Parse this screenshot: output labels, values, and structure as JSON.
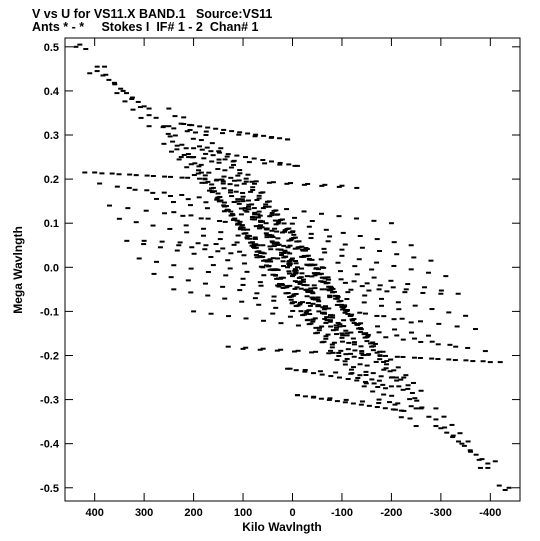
{
  "chart_data": {
    "type": "scatter",
    "title": "V vs U for VS11.X BAND.1   Source:VS11",
    "subtitle": "Ants * - *     Stokes I  IF# 1 - 2  Chan# 1",
    "xlabel": "Kilo Wavlngth",
    "ylabel": "Mega Wavlngth",
    "xlim": [
      460,
      -460
    ],
    "ylim": [
      -0.53,
      0.52
    ],
    "xticks": [
      400,
      300,
      200,
      100,
      0,
      -100,
      -200,
      -300,
      -400
    ],
    "xtick_labels": [
      "400",
      "300",
      "200",
      "100",
      "0",
      "-100",
      "-200",
      "-300",
      "-400"
    ],
    "yticks": [
      0.5,
      0.4,
      0.3,
      0.2,
      0.1,
      0.0,
      -0.1,
      -0.2,
      -0.3,
      -0.4,
      -0.5
    ],
    "ytick_labels": [
      "0.5",
      "0.4",
      "0.3",
      "0.2",
      "0.1",
      "0.0",
      "-0.1",
      "-0.2",
      "-0.3",
      "-0.4",
      "-0.5"
    ],
    "grid": false,
    "tracks": [
      {
        "from": [
          430,
          0.505
        ],
        "to": [
          418,
          0.495
        ],
        "n": 2
      },
      {
        "from": [
          395,
          0.445
        ],
        "to": [
          300,
          0.365
        ],
        "n": 9
      },
      {
        "from": [
          355,
          0.395
        ],
        "to": [
          290,
          0.32
        ],
        "n": 5
      },
      {
        "from": [
          220,
          0.325
        ],
        "to": [
          10,
          0.29
        ],
        "n": 14
      },
      {
        "from": [
          260,
          0.32
        ],
        "to": [
          225,
          0.25
        ],
        "n": 5
      },
      {
        "from": [
          200,
          0.27
        ],
        "to": [
          -10,
          0.23
        ],
        "n": 13
      },
      {
        "from": [
          400,
          0.215
        ],
        "to": [
          -130,
          0.18
        ],
        "n": 16
      },
      {
        "from": [
          330,
          0.18
        ],
        "to": [
          -200,
          0.1
        ],
        "n": 16
      },
      {
        "from": [
          275,
          0.155
        ],
        "to": [
          -240,
          0.05
        ],
        "n": 16
      },
      {
        "from": [
          240,
          0.125
        ],
        "to": [
          -280,
          0.015
        ],
        "n": 16
      },
      {
        "from": [
          215,
          0.095
        ],
        "to": [
          -310,
          -0.02
        ],
        "n": 16
      },
      {
        "from": [
          175,
          0.05
        ],
        "to": [
          -335,
          -0.06
        ],
        "n": 16
      },
      {
        "from": [
          100,
          -0.04
        ],
        "to": [
          -300,
          -0.06
        ],
        "n": 12
      },
      {
        "from": [
          160,
          0.005
        ],
        "to": [
          -350,
          -0.11
        ],
        "n": 16
      },
      {
        "from": [
          75,
          -0.07
        ],
        "to": [
          -370,
          -0.14
        ],
        "n": 13
      },
      {
        "from": [
          40,
          -0.105
        ],
        "to": [
          -390,
          -0.19
        ],
        "n": 13
      },
      {
        "from": [
          100,
          -0.185
        ],
        "to": [
          -420,
          -0.215
        ],
        "n": 16
      },
      {
        "from": [
          5,
          -0.23
        ],
        "to": [
          -210,
          -0.25
        ],
        "n": 8
      },
      {
        "from": [
          -10,
          -0.29
        ],
        "to": [
          -240,
          -0.315
        ],
        "n": 8
      },
      {
        "from": [
          -290,
          -0.345
        ],
        "to": [
          -395,
          -0.455
        ],
        "n": 7
      },
      {
        "from": [
          -410,
          -0.44
        ],
        "to": [
          -380,
          -0.455
        ],
        "n": 2
      },
      {
        "from": [
          -438,
          -0.5
        ],
        "to": [
          -445,
          -0.505
        ],
        "n": 1
      },
      {
        "from": [
          250,
          0.36
        ],
        "to": [
          -10,
          0.0
        ],
        "n": 22
      },
      {
        "from": [
          220,
          0.34
        ],
        "to": [
          -30,
          -0.02
        ],
        "n": 22
      },
      {
        "from": [
          175,
          0.3
        ],
        "to": [
          -70,
          -0.05
        ],
        "n": 20
      },
      {
        "from": [
          145,
          0.27
        ],
        "to": [
          -100,
          -0.09
        ],
        "n": 20
      },
      {
        "from": [
          120,
          0.24
        ],
        "to": [
          -130,
          -0.13
        ],
        "n": 20
      },
      {
        "from": [
          90,
          0.21
        ],
        "to": [
          -160,
          -0.18
        ],
        "n": 20
      },
      {
        "from": [
          60,
          0.17
        ],
        "to": [
          -190,
          -0.22
        ],
        "n": 20
      },
      {
        "from": [
          30,
          0.12
        ],
        "to": [
          -215,
          -0.27
        ],
        "n": 20
      },
      {
        "from": [
          0,
          0.08
        ],
        "to": [
          -250,
          -0.32
        ],
        "n": 20
      },
      {
        "from": [
          -20,
          0.04
        ],
        "to": [
          -290,
          -0.36
        ],
        "n": 20
      },
      {
        "from": [
          140,
          0.195
        ],
        "to": [
          -140,
          -0.19
        ],
        "n": 20
      },
      {
        "from": [
          100,
          0.15
        ],
        "to": [
          -100,
          -0.16
        ],
        "n": 18
      },
      {
        "from": [
          70,
          0.12
        ],
        "to": [
          -70,
          -0.12
        ],
        "n": 16
      },
      {
        "from": [
          60,
          0.0
        ],
        "to": [
          -230,
          -0.05
        ],
        "n": 12
      },
      {
        "from": [
          0,
          -0.02
        ],
        "to": [
          -200,
          -0.25
        ],
        "n": 14
      },
      {
        "from": [
          -60,
          -0.05
        ],
        "to": [
          -260,
          -0.28
        ],
        "n": 14
      }
    ]
  }
}
